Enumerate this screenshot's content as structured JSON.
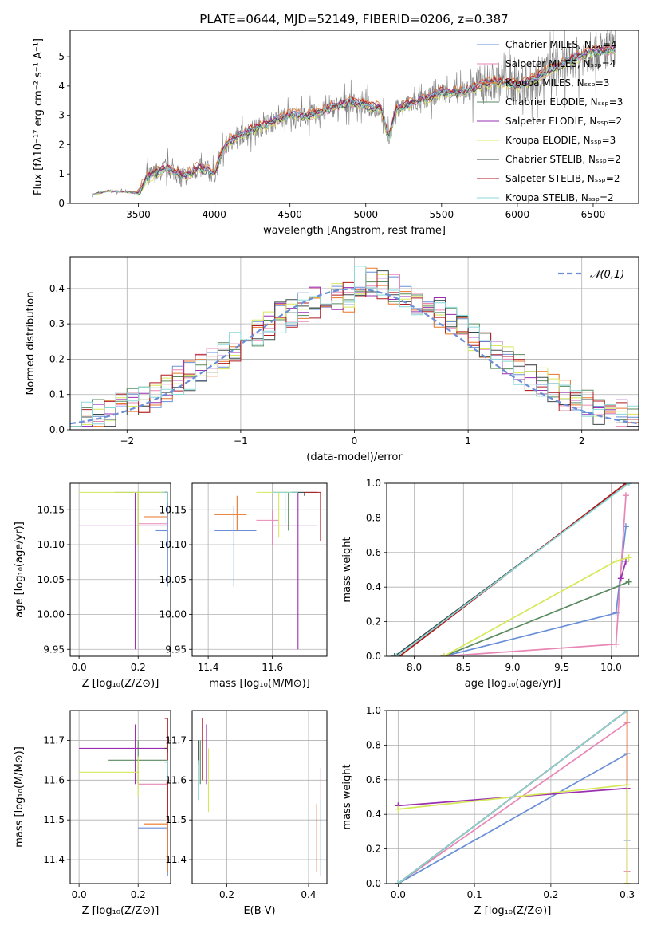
{
  "title": "PLATE=0644, MJD=52149, FIBERID=0206, z=0.387",
  "colors": {
    "chabrier_miles": "#6a8fd8",
    "salpeter_miles": "#e887b5",
    "kroupa_miles": "#e8762a",
    "chabrier_elodie": "#5a8a5f",
    "salpeter_elodie": "#9a2fb0",
    "kroupa_elodie": "#d6e85a",
    "chabrier_stelib": "#3d4a4a",
    "salpeter_stelib": "#b01a22",
    "kroupa_stelib": "#88d8d8",
    "data": "#808080",
    "grid": "#b0b0b0",
    "gauss": "#6a8fd8"
  },
  "legend_labels": [
    "Chabrier MILES, Nₛₛₚ=4",
    "Salpeter MILES, Nₛₛₚ=4",
    "Kroupa MILES, Nₛₛₚ=3",
    "Chabrier ELODIE, Nₛₛₚ=3",
    "Salpeter ELODIE, Nₛₛₚ=2",
    "Kroupa ELODIE, Nₛₛₚ=3",
    "Chabrier STELIB, Nₛₛₚ=2",
    "Salpeter STELIB, Nₛₛₚ=2",
    "Kroupa STELIB, Nₛₛₚ=2"
  ],
  "chart_data": [
    {
      "id": "spectrum",
      "type": "line",
      "xlabel": "wavelength [Angstrom, rest frame]",
      "ylabel": "Flux [fλ10⁻¹⁷ erg cm⁻² s⁻¹ A⁻¹]",
      "xlim": [
        3050,
        6800
      ],
      "ylim": [
        0,
        5.9
      ],
      "xticks": [
        3500,
        4000,
        4500,
        5000,
        5500,
        6000,
        6500
      ],
      "yticks": [
        0,
        1,
        2,
        3,
        4,
        5
      ],
      "grid": false,
      "legend": "upper right",
      "model_curve": {
        "x": [
          3200,
          3300,
          3400,
          3500,
          3550,
          3600,
          3700,
          3800,
          3900,
          4000,
          4050,
          4100,
          4200,
          4300,
          4400,
          4500,
          4600,
          4700,
          4800,
          4900,
          5000,
          5100,
          5150,
          5200,
          5300,
          5400,
          5500,
          5600,
          5700,
          5800,
          5900,
          6000,
          6100,
          6200,
          6300,
          6400,
          6500,
          6600
        ],
        "y": [
          0.3,
          0.42,
          0.4,
          0.35,
          0.8,
          1.0,
          1.2,
          0.9,
          1.2,
          1.0,
          1.7,
          2.1,
          2.4,
          2.6,
          2.8,
          3.0,
          2.95,
          3.1,
          3.3,
          3.45,
          3.35,
          3.2,
          2.2,
          3.2,
          3.4,
          3.55,
          3.8,
          3.75,
          3.9,
          4.1,
          4.15,
          4.0,
          4.2,
          4.5,
          4.75,
          5.0,
          5.15,
          5.2
        ]
      }
    },
    {
      "id": "residuals",
      "type": "line",
      "xlabel": "(data-model)/error",
      "ylabel": "Normed distribution",
      "xlim": [
        -2.5,
        2.5
      ],
      "ylim": [
        0,
        0.49
      ],
      "xticks": [
        -2,
        -1,
        0,
        1,
        2
      ],
      "yticks": [
        0.0,
        0.1,
        0.2,
        0.3,
        0.4
      ],
      "grid": true,
      "legend": "upper right",
      "legend_label": "𝒩(0,1)"
    },
    {
      "id": "age_Z",
      "type": "scatter",
      "xlabel": "Z [log₁₀(Z/Z⊙)]",
      "ylabel": "age  [log₁₀(age/yr)]",
      "xlim": [
        -0.03,
        0.31
      ],
      "ylim": [
        9.94,
        10.188
      ],
      "xticks": [
        0.0,
        0.2
      ],
      "yticks": [
        9.95,
        10.0,
        10.05,
        10.1,
        10.15
      ],
      "grid": true,
      "points": [
        {
          "series": "chabrier_miles",
          "x": 0.3,
          "y": 10.12,
          "xerr": [
            0.26,
            0.3
          ],
          "yerr": [
            10.04,
            10.175
          ]
        },
        {
          "series": "salpeter_miles",
          "x": 0.3,
          "y": 10.13,
          "xerr": [
            0.2,
            0.3
          ],
          "yerr": [
            10.13,
            10.13
          ]
        },
        {
          "series": "kroupa_miles",
          "x": 0.3,
          "y": 10.14,
          "xerr": [
            0.22,
            0.3
          ],
          "yerr": [
            10.14,
            10.14
          ]
        },
        {
          "series": "chabrier_elodie",
          "x": 0.2,
          "y": 10.175,
          "xerr": [
            0.12,
            0.3
          ],
          "yerr": [
            10.1,
            10.175
          ]
        },
        {
          "series": "salpeter_elodie",
          "x": 0.19,
          "y": 10.127,
          "xerr": [
            0.0,
            0.3
          ],
          "yerr": [
            9.95,
            10.175
          ]
        },
        {
          "series": "kroupa_elodie",
          "x": 0.2,
          "y": 10.175,
          "xerr": [
            0.0,
            0.3
          ],
          "yerr": [
            10.1,
            10.175
          ]
        },
        {
          "series": "chabrier_stelib",
          "x": 0.3,
          "y": 10.175,
          "xerr": [
            0.29,
            0.3
          ],
          "yerr": [
            10.16,
            10.175
          ]
        },
        {
          "series": "salpeter_stelib",
          "x": 0.3,
          "y": 10.175,
          "xerr": [
            0.29,
            0.3
          ],
          "yerr": [
            10.17,
            10.175
          ]
        },
        {
          "series": "kroupa_stelib",
          "x": 0.3,
          "y": 10.175,
          "xerr": [
            0.28,
            0.3
          ],
          "yerr": [
            10.16,
            10.175
          ]
        }
      ]
    },
    {
      "id": "age_mass",
      "type": "scatter",
      "xlabel": "mass [log₁₀(M/M⊙)]",
      "ylabel": "",
      "xlim": [
        11.35,
        11.77
      ],
      "ylim": [
        9.94,
        10.188
      ],
      "xticks": [
        11.4,
        11.6
      ],
      "yticks": [
        9.95,
        10.0,
        10.05,
        10.1,
        10.15
      ],
      "grid": true,
      "points": [
        {
          "series": "chabrier_miles",
          "x": 11.48,
          "y": 10.12,
          "xerr": [
            11.42,
            11.55
          ],
          "yerr": [
            10.04,
            10.155
          ]
        },
        {
          "series": "salpeter_miles",
          "x": 11.6,
          "y": 10.135,
          "xerr": [
            11.55,
            11.62
          ],
          "yerr": [
            10.1,
            10.15
          ]
        },
        {
          "series": "kroupa_miles",
          "x": 11.49,
          "y": 10.143,
          "xerr": [
            11.42,
            11.52
          ],
          "yerr": [
            10.12,
            10.17
          ]
        },
        {
          "series": "chabrier_elodie",
          "x": 11.65,
          "y": 10.175,
          "xerr": [
            11.6,
            11.7
          ],
          "yerr": [
            10.12,
            10.175
          ]
        },
        {
          "series": "salpeter_elodie",
          "x": 11.68,
          "y": 10.127,
          "xerr": [
            11.6,
            11.74
          ],
          "yerr": [
            9.95,
            10.175
          ]
        },
        {
          "series": "kroupa_elodie",
          "x": 11.62,
          "y": 10.175,
          "xerr": [
            11.55,
            11.68
          ],
          "yerr": [
            10.11,
            10.175
          ]
        },
        {
          "series": "chabrier_stelib",
          "x": 11.7,
          "y": 10.175,
          "xerr": [
            11.66,
            11.74
          ],
          "yerr": [
            10.17,
            10.175
          ]
        },
        {
          "series": "salpeter_stelib",
          "x": 11.75,
          "y": 10.175,
          "xerr": [
            11.7,
            11.75
          ],
          "yerr": [
            10.105,
            10.175
          ]
        },
        {
          "series": "kroupa_stelib",
          "x": 11.64,
          "y": 10.175,
          "xerr": [
            11.6,
            11.68
          ],
          "yerr": [
            10.13,
            10.175
          ]
        }
      ]
    },
    {
      "id": "massweight_age",
      "type": "line",
      "xlabel": "age  [log₁₀(age/yr)]",
      "ylabel": "mass weight",
      "xlim": [
        7.72,
        10.28
      ],
      "ylim": [
        0,
        1.0
      ],
      "xticks": [
        8.0,
        8.5,
        9.0,
        9.5,
        10.0
      ],
      "yticks": [
        0.0,
        0.2,
        0.4,
        0.6,
        0.8,
        1.0
      ],
      "grid": true,
      "series": [
        {
          "key": "chabrier_miles",
          "x": [
            8.3,
            10.05,
            10.15
          ],
          "y": [
            0.0,
            0.25,
            0.75
          ]
        },
        {
          "key": "salpeter_miles",
          "x": [
            8.3,
            10.05,
            10.15
          ],
          "y": [
            0.0,
            0.07,
            0.93
          ]
        },
        {
          "key": "kroupa_miles",
          "x": [
            7.85,
            10.15
          ],
          "y": [
            0.0,
            1.0
          ]
        },
        {
          "key": "chabrier_elodie",
          "x": [
            8.3,
            10.18
          ],
          "y": [
            0.0,
            0.43
          ]
        },
        {
          "key": "salpeter_elodie",
          "x": [
            10.1,
            10.15
          ],
          "y": [
            0.45,
            0.55
          ]
        },
        {
          "key": "kroupa_elodie",
          "x": [
            8.3,
            10.05,
            10.18
          ],
          "y": [
            0.0,
            0.55,
            0.57
          ]
        },
        {
          "key": "chabrier_stelib",
          "x": [
            7.8,
            10.18
          ],
          "y": [
            0.0,
            1.0
          ]
        },
        {
          "key": "salpeter_stelib",
          "x": [
            7.85,
            10.15
          ],
          "y": [
            0.0,
            1.0
          ]
        },
        {
          "key": "kroupa_stelib",
          "x": [
            7.82,
            10.18
          ],
          "y": [
            0.0,
            1.0
          ]
        }
      ]
    },
    {
      "id": "mass_Z",
      "type": "scatter",
      "xlabel": "Z [log₁₀(Z/Z⊙)]",
      "ylabel": "mass [log₁₀(M/M⊙)]",
      "xlim": [
        -0.03,
        0.31
      ],
      "ylim": [
        11.34,
        11.775
      ],
      "xticks": [
        0.0,
        0.2
      ],
      "yticks": [
        11.4,
        11.5,
        11.6,
        11.7
      ],
      "grid": true,
      "points": [
        {
          "series": "chabrier_miles",
          "x": 0.3,
          "y": 11.48,
          "xerr": [
            0.2,
            0.3
          ],
          "yerr": [
            11.36,
            11.62
          ]
        },
        {
          "series": "salpeter_miles",
          "x": 0.3,
          "y": 11.59,
          "xerr": [
            0.2,
            0.3
          ],
          "yerr": [
            11.45,
            11.62
          ]
        },
        {
          "series": "kroupa_miles",
          "x": 0.3,
          "y": 11.49,
          "xerr": [
            0.22,
            0.3
          ],
          "yerr": [
            11.37,
            11.6
          ]
        },
        {
          "series": "chabrier_elodie",
          "x": 0.2,
          "y": 11.65,
          "xerr": [
            0.1,
            0.3
          ],
          "yerr": [
            11.59,
            11.7
          ]
        },
        {
          "series": "salpeter_elodie",
          "x": 0.19,
          "y": 11.68,
          "xerr": [
            0.0,
            0.3
          ],
          "yerr": [
            11.59,
            11.74
          ]
        },
        {
          "series": "kroupa_elodie",
          "x": 0.2,
          "y": 11.62,
          "xerr": [
            0.0,
            0.2
          ],
          "yerr": [
            11.56,
            11.66
          ]
        },
        {
          "series": "chabrier_stelib",
          "x": 0.3,
          "y": 11.68,
          "xerr": [
            0.29,
            0.3
          ],
          "yerr": [
            11.67,
            11.69
          ]
        },
        {
          "series": "salpeter_stelib",
          "x": 0.3,
          "y": 11.755,
          "xerr": [
            0.29,
            0.3
          ],
          "yerr": [
            11.5,
            11.755
          ]
        },
        {
          "series": "kroupa_stelib",
          "x": 0.3,
          "y": 11.645,
          "xerr": [
            0.29,
            0.3
          ],
          "yerr": [
            11.6,
            11.65
          ]
        }
      ]
    },
    {
      "id": "mass_ebv",
      "type": "scatter",
      "xlabel": "E(B-V)",
      "ylabel": "",
      "xlim": [
        0.115,
        0.445
      ],
      "ylim": [
        11.34,
        11.775
      ],
      "xticks": [
        0.2,
        0.4
      ],
      "yticks": [
        11.4,
        11.5,
        11.6,
        11.7
      ],
      "grid": true,
      "points": [
        {
          "series": "chabrier_miles",
          "x": 0.43,
          "y": 11.48,
          "xerr": [
            0.43,
            0.43
          ],
          "yerr": [
            11.36,
            11.55
          ]
        },
        {
          "series": "salpeter_miles",
          "x": 0.43,
          "y": 11.59,
          "xerr": [
            0.43,
            0.43
          ],
          "yerr": [
            11.55,
            11.63
          ]
        },
        {
          "series": "kroupa_miles",
          "x": 0.42,
          "y": 11.49,
          "xerr": [
            0.42,
            0.42
          ],
          "yerr": [
            11.37,
            11.54
          ]
        },
        {
          "series": "chabrier_elodie",
          "x": 0.135,
          "y": 11.65,
          "xerr": [
            0.135,
            0.135
          ],
          "yerr": [
            11.59,
            11.7
          ]
        },
        {
          "series": "salpeter_elodie",
          "x": 0.15,
          "y": 11.68,
          "xerr": [
            0.15,
            0.15
          ],
          "yerr": [
            11.59,
            11.74
          ]
        },
        {
          "series": "kroupa_elodie",
          "x": 0.155,
          "y": 11.62,
          "xerr": [
            0.155,
            0.155
          ],
          "yerr": [
            11.52,
            11.68
          ]
        },
        {
          "series": "chabrier_stelib",
          "x": 0.13,
          "y": 11.68,
          "xerr": [
            0.13,
            0.13
          ],
          "yerr": [
            11.64,
            11.7
          ]
        },
        {
          "series": "salpeter_stelib",
          "x": 0.14,
          "y": 11.755,
          "xerr": [
            0.14,
            0.14
          ],
          "yerr": [
            11.6,
            11.755
          ]
        },
        {
          "series": "kroupa_stelib",
          "x": 0.13,
          "y": 11.645,
          "xerr": [
            0.13,
            0.13
          ],
          "yerr": [
            11.55,
            11.65
          ]
        }
      ]
    },
    {
      "id": "massweight_Z",
      "type": "line",
      "xlabel": "Z [log₁₀(Z/Z⊙)]",
      "ylabel": "mass weight",
      "xlim": [
        -0.015,
        0.315
      ],
      "ylim": [
        0,
        1.0
      ],
      "xticks": [
        0.0,
        0.1,
        0.2,
        0.3
      ],
      "yticks": [
        0.0,
        0.2,
        0.4,
        0.6,
        0.8,
        1.0
      ],
      "grid": true,
      "series": [
        {
          "key": "chabrier_miles",
          "x": [
            0.0,
            0.3,
            0.3
          ],
          "y": [
            0.0,
            0.75,
            0.25
          ]
        },
        {
          "key": "salpeter_miles",
          "x": [
            0.0,
            0.3,
            0.3
          ],
          "y": [
            0.0,
            0.93,
            0.07
          ]
        },
        {
          "key": "kroupa_miles",
          "x": [
            0.0,
            0.3,
            0.3
          ],
          "y": [
            0.0,
            1.0,
            0.0
          ]
        },
        {
          "key": "chabrier_elodie",
          "x": [
            0.0,
            0.3
          ],
          "y": [
            0.0,
            1.0
          ]
        },
        {
          "key": "salpeter_elodie",
          "x": [
            0.0,
            0.3
          ],
          "y": [
            0.45,
            0.55
          ]
        },
        {
          "key": "kroupa_elodie",
          "x": [
            0.0,
            0.3,
            0.3
          ],
          "y": [
            0.43,
            0.57,
            0.0
          ]
        },
        {
          "key": "chabrier_stelib",
          "x": [
            0.0,
            0.3
          ],
          "y": [
            0.0,
            1.0
          ]
        },
        {
          "key": "salpeter_stelib",
          "x": [
            0.0,
            0.3
          ],
          "y": [
            0.0,
            1.0
          ]
        },
        {
          "key": "kroupa_stelib",
          "x": [
            0.0,
            0.3
          ],
          "y": [
            0.0,
            1.0
          ]
        }
      ]
    }
  ]
}
